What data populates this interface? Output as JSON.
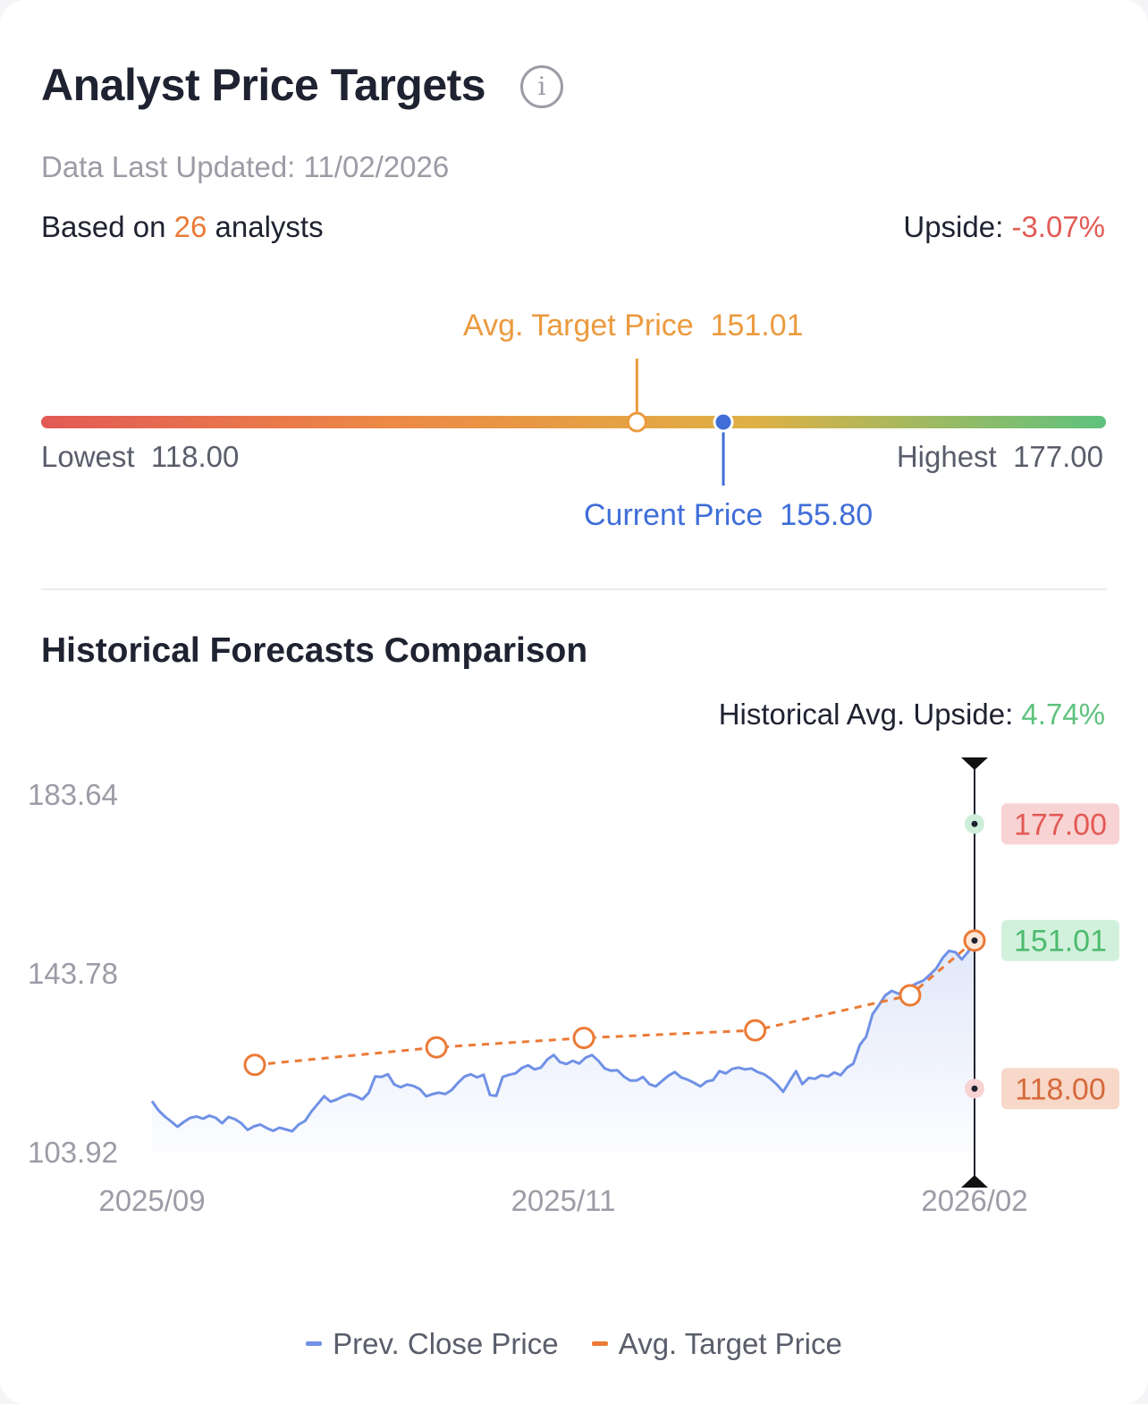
{
  "header": {
    "title": "Analyst Price Targets",
    "info_icon": "info-icon",
    "updated_label": "Data Last Updated: ",
    "updated_date": "11/02/2026",
    "based_prefix": "Based on ",
    "analyst_count": "26",
    "based_suffix": " analysts",
    "upside_label": "Upside: ",
    "upside_value": "-3.07%"
  },
  "gauge": {
    "avg_label": "Avg. Target Price",
    "avg_value": "151.01",
    "current_label": "Current Price",
    "current_value": "155.80",
    "lowest_label": "Lowest",
    "lowest_value": "118.00",
    "highest_label": "Highest",
    "highest_value": "177.00",
    "min": 118.0,
    "max": 177.0,
    "avg": 151.01,
    "current": 155.8,
    "colors": [
      "#e25a55",
      "#ec8a45",
      "#e0b045",
      "#5fc27e"
    ]
  },
  "history": {
    "title": "Historical Forecasts Comparison",
    "upside_label": "Historical Avg. Upside: ",
    "upside_value": "4.74%"
  },
  "chart_data": {
    "type": "line",
    "y_ticks": [
      "183.64",
      "143.78",
      "103.92"
    ],
    "ylim": [
      103.92,
      183.64
    ],
    "x_ticks": [
      {
        "label": "2025/09",
        "x": 0
      },
      {
        "label": "2025/11",
        "x": 60
      },
      {
        "label": "2026/02",
        "x": 120
      }
    ],
    "xlim": [
      0,
      120
    ],
    "series": [
      {
        "name": "Prev. Close Price",
        "color": "#7091e6",
        "values": [
          115.2,
          113.2,
          111.8,
          110.7,
          109.5,
          110.6,
          111.5,
          111.8,
          111.3,
          112.0,
          111.5,
          110.3,
          111.7,
          111.2,
          110.3,
          108.8,
          109.6,
          110.0,
          109.2,
          108.6,
          109.3,
          108.9,
          108.5,
          110.0,
          110.8,
          112.9,
          114.6,
          116.3,
          115.1,
          115.6,
          116.3,
          116.8,
          116.3,
          115.6,
          117.1,
          120.7,
          120.6,
          121.2,
          118.9,
          118.3,
          118.9,
          118.6,
          117.9,
          116.3,
          116.8,
          117.1,
          116.8,
          117.7,
          119.3,
          120.7,
          121.2,
          120.5,
          121.1,
          116.6,
          116.4,
          120.6,
          121.1,
          121.4,
          122.6,
          123.2,
          122.3,
          122.7,
          124.5,
          125.5,
          123.9,
          123.5,
          124.2,
          123.6,
          124.9,
          125.5,
          124.2,
          122.5,
          122.0,
          122.1,
          120.7,
          119.8,
          119.8,
          120.6,
          119.0,
          118.5,
          119.7,
          120.9,
          121.7,
          120.5,
          120.0,
          119.3,
          118.5,
          119.6,
          119.9,
          121.9,
          121.4,
          122.4,
          122.7,
          122.3,
          122.5,
          121.7,
          121.2,
          120.2,
          118.9,
          117.3,
          119.7,
          121.9,
          119.0,
          120.4,
          120.2,
          121.0,
          120.7,
          121.6,
          121.0,
          122.7,
          123.6,
          127.7,
          129.6,
          134.6,
          136.6,
          138.8,
          139.8,
          139.2,
          139.4,
          140.8,
          141.5,
          142.1,
          143.4,
          144.8,
          147.1,
          148.7,
          148.4,
          146.8,
          148.5,
          152.1
        ]
      },
      {
        "name": "Avg. Target Price",
        "color": "#eb7a36",
        "points": [
          {
            "x": 15,
            "y": 123.3
          },
          {
            "x": 41.5,
            "y": 127.2
          },
          {
            "x": 63,
            "y": 129.3
          },
          {
            "x": 88,
            "y": 131.0
          },
          {
            "x": 110.6,
            "y": 138.8
          },
          {
            "x": 120,
            "y": 151.01
          }
        ]
      }
    ],
    "range_markers": [
      {
        "label": "177.00",
        "value": 177.0,
        "text_color": "#e25a55",
        "bg": "#f8d3d4",
        "dot_bg": "#cdeed9"
      },
      {
        "label": "151.01",
        "value": 151.01,
        "text_color": "#4cbb6e",
        "bg": "#d2f1dc"
      },
      {
        "label": "118.00",
        "value": 118.0,
        "text_color": "#d66a3c",
        "bg": "#f8d8c8",
        "dot_bg": "#f8d3d4"
      }
    ],
    "grid": false,
    "legend_position": "bottom-center"
  },
  "legend": {
    "items": [
      {
        "label": "Prev. Close Price",
        "color": "#7091e6"
      },
      {
        "label": "Avg. Target Price",
        "color": "#eb7a36"
      }
    ]
  }
}
